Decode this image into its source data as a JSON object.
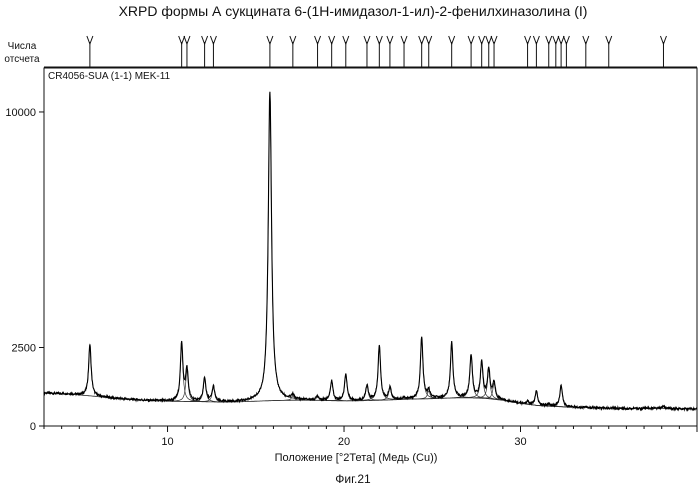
{
  "chart_data": {
    "type": "line",
    "title": "XRPD формы А сукцината 6-(1Н-имидазол-1-ил)-2-фенилхиназолина (I)",
    "peak_marker_label_line1": "Числа",
    "peak_marker_label_line2": "отсчета",
    "sample_label": "CR4056-SUA (1-1) MEK-11",
    "xlabel": "Положение [°2Тета] (Медь (Cu))",
    "ylabel": "",
    "caption": "Фиг.21",
    "xlim": [
      3.0,
      40.0
    ],
    "ylim": [
      0,
      11400
    ],
    "xticks": [
      10,
      20,
      30
    ],
    "yticks": [
      0,
      2500,
      10000
    ],
    "ytick_labels": [
      "0",
      "2500",
      "10000"
    ],
    "grid": false,
    "background": [
      [
        3.0,
        1050
      ],
      [
        3.5,
        1040
      ],
      [
        4.0,
        1030
      ],
      [
        4.5,
        1020
      ],
      [
        5.0,
        990
      ],
      [
        6.0,
        940
      ],
      [
        7.0,
        880
      ],
      [
        8.0,
        840
      ],
      [
        9.0,
        810
      ],
      [
        10.0,
        790
      ],
      [
        11.0,
        780
      ],
      [
        12.0,
        775
      ],
      [
        13.0,
        760
      ],
      [
        14.0,
        770
      ],
      [
        15.0,
        790
      ],
      [
        16.0,
        810
      ],
      [
        17.0,
        820
      ],
      [
        18.0,
        820
      ],
      [
        19.0,
        810
      ],
      [
        20.0,
        800
      ],
      [
        21.0,
        805
      ],
      [
        22.0,
        820
      ],
      [
        23.0,
        840
      ],
      [
        24.0,
        860
      ],
      [
        25.0,
        870
      ],
      [
        26.0,
        890
      ],
      [
        27.0,
        900
      ],
      [
        28.0,
        880
      ],
      [
        29.0,
        820
      ],
      [
        30.0,
        720
      ],
      [
        31.0,
        650
      ],
      [
        32.0,
        620
      ],
      [
        33.0,
        600
      ],
      [
        34.0,
        580
      ],
      [
        35.0,
        570
      ],
      [
        36.0,
        560
      ],
      [
        37.0,
        560
      ],
      [
        38.0,
        560
      ],
      [
        39.0,
        550
      ],
      [
        40.0,
        540
      ]
    ],
    "peaks": [
      {
        "x": 5.6,
        "y": 2600
      },
      {
        "x": 10.8,
        "y": 2620
      },
      {
        "x": 11.1,
        "y": 1780
      },
      {
        "x": 12.1,
        "y": 1520
      },
      {
        "x": 12.6,
        "y": 1250
      },
      {
        "x": 15.8,
        "y": 10650
      },
      {
        "x": 17.1,
        "y": 960
      },
      {
        "x": 18.5,
        "y": 940
      },
      {
        "x": 19.3,
        "y": 1430
      },
      {
        "x": 20.1,
        "y": 1650
      },
      {
        "x": 21.3,
        "y": 1280
      },
      {
        "x": 22.0,
        "y": 2550
      },
      {
        "x": 22.6,
        "y": 1220
      },
      {
        "x": 23.4,
        "y": 900
      },
      {
        "x": 24.4,
        "y": 2820
      },
      {
        "x": 24.8,
        "y": 1120
      },
      {
        "x": 26.1,
        "y": 2650
      },
      {
        "x": 27.2,
        "y": 2260
      },
      {
        "x": 27.8,
        "y": 2040
      },
      {
        "x": 28.2,
        "y": 1800
      },
      {
        "x": 28.5,
        "y": 1360
      },
      {
        "x": 30.4,
        "y": 780
      },
      {
        "x": 30.9,
        "y": 1100
      },
      {
        "x": 31.6,
        "y": 700
      },
      {
        "x": 32.0,
        "y": 640
      },
      {
        "x": 32.3,
        "y": 1290
      },
      {
        "x": 32.6,
        "y": 600
      },
      {
        "x": 33.7,
        "y": 620
      },
      {
        "x": 35.0,
        "y": 560
      },
      {
        "x": 38.1,
        "y": 640
      }
    ]
  }
}
